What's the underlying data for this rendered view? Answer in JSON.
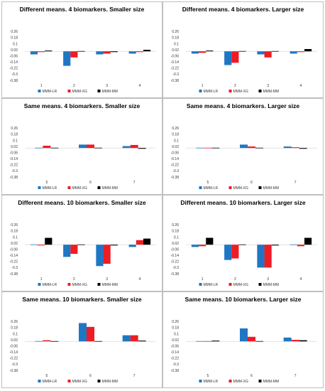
{
  "colors": {
    "MMM-LR": "#1f77c4",
    "MMM-XG": "#ee1c24",
    "MMM-MM": "#000000"
  },
  "chart_data": [
    {
      "type": "bar",
      "title": "Different means. 4 biomarkers. Smaller size",
      "categories": [
        "1",
        "2",
        "3",
        "4"
      ],
      "yticks": [
        "0.26",
        "0.18",
        "0.1",
        "0.02",
        "-0.06",
        "-0.14",
        "-0.22",
        "-0.3",
        "-0.38"
      ],
      "ylim": [
        -0.38,
        0.3
      ],
      "legend": [
        "MMM-LR",
        "MMM-XG",
        "MMM-MM"
      ],
      "series": [
        {
          "name": "MMM-LR",
          "values": [
            -0.04,
            -0.19,
            -0.04,
            -0.03
          ]
        },
        {
          "name": "MMM-XG",
          "values": [
            -0.01,
            -0.08,
            -0.03,
            -0.01
          ]
        },
        {
          "name": "MMM-MM",
          "values": [
            0.01,
            0.0,
            -0.01,
            0.02
          ]
        }
      ]
    },
    {
      "type": "bar",
      "title": "Different means. 4 biomarkers. Larger size",
      "categories": [
        "1",
        "2",
        "3",
        "4"
      ],
      "yticks": [
        "0.26",
        "0.18",
        "0.1",
        "0.02",
        "-0.06",
        "-0.14",
        "-0.22",
        "-0.3",
        "-0.38"
      ],
      "ylim": [
        -0.38,
        0.3
      ],
      "legend": [
        "MMM-LR",
        "MMM-XG",
        "MMM-MM"
      ],
      "series": [
        {
          "name": "MMM-LR",
          "values": [
            -0.03,
            -0.18,
            -0.04,
            -0.03
          ]
        },
        {
          "name": "MMM-XG",
          "values": [
            -0.02,
            -0.15,
            -0.08,
            -0.01
          ]
        },
        {
          "name": "MMM-MM",
          "values": [
            0.01,
            0.0,
            0.0,
            0.03
          ]
        }
      ]
    },
    {
      "type": "bar",
      "title": "Same means. 4 biomarkers. Smaller size",
      "categories": [
        "5",
        "6",
        "7"
      ],
      "yticks": [
        "0.26",
        "0.18",
        "0.1",
        "0.02",
        "-0.06",
        "-0.14",
        "-0.22",
        "-0.3",
        "-0.38"
      ],
      "ylim": [
        -0.38,
        0.3
      ],
      "legend": [
        "MMM-LR",
        "MMM-XG",
        "MMM-MM"
      ],
      "series": [
        {
          "name": "MMM-LR",
          "values": [
            -0.005,
            0.045,
            0.025
          ]
        },
        {
          "name": "MMM-XG",
          "values": [
            0.03,
            0.045,
            0.04
          ]
        },
        {
          "name": "MMM-MM",
          "values": [
            0.0,
            -0.005,
            -0.01
          ]
        }
      ]
    },
    {
      "type": "bar",
      "title": "Same means. 4 biomarkers. Larger size",
      "categories": [
        "5",
        "6",
        "7"
      ],
      "yticks": [
        "0.26",
        "0.18",
        "0.1",
        "0.02",
        "-0.06",
        "-0.14",
        "-0.22",
        "-0.3",
        "-0.38"
      ],
      "ylim": [
        -0.38,
        0.3
      ],
      "legend": [
        "MMM-LR",
        "MMM-XG",
        "MMM-MM"
      ],
      "series": [
        {
          "name": "MMM-LR",
          "values": [
            -0.005,
            0.045,
            0.02
          ]
        },
        {
          "name": "MMM-XG",
          "values": [
            0.0,
            0.02,
            0.01
          ]
        },
        {
          "name": "MMM-MM",
          "values": [
            0.0,
            0.0,
            -0.01
          ]
        }
      ]
    },
    {
      "type": "bar",
      "title": "Different means. 10 biomarkers. Smaller size",
      "categories": [
        "1",
        "2",
        "3",
        "4"
      ],
      "yticks": [
        "0.26",
        "0.18",
        "0.1",
        "0.02",
        "-0.06",
        "-0.14",
        "-0.22",
        "-0.3",
        "-0.38"
      ],
      "ylim": [
        -0.38,
        0.3
      ],
      "legend": [
        "MMM-LR",
        "MMM-XG",
        "MMM-MM"
      ],
      "series": [
        {
          "name": "MMM-LR",
          "values": [
            0.0,
            -0.16,
            -0.28,
            -0.03
          ]
        },
        {
          "name": "MMM-XG",
          "values": [
            -0.01,
            -0.12,
            -0.25,
            0.06
          ]
        },
        {
          "name": "MMM-MM",
          "values": [
            0.09,
            0.0,
            -0.01,
            0.08
          ]
        }
      ]
    },
    {
      "type": "bar",
      "title": "Different means. 10 biomarkers. Larger size",
      "categories": [
        "1",
        "2",
        "3",
        "4"
      ],
      "yticks": [
        "0.26",
        "0.18",
        "0.1",
        "0.02",
        "-0.06",
        "-0.14",
        "-0.22",
        "-0.3",
        "-0.38"
      ],
      "ylim": [
        -0.38,
        0.3
      ],
      "legend": [
        "MMM-LR",
        "MMM-XG",
        "MMM-MM"
      ],
      "series": [
        {
          "name": "MMM-LR",
          "values": [
            -0.03,
            -0.2,
            -0.3,
            0.0
          ]
        },
        {
          "name": "MMM-XG",
          "values": [
            -0.02,
            -0.18,
            -0.3,
            -0.02
          ]
        },
        {
          "name": "MMM-MM",
          "values": [
            0.09,
            0.0,
            -0.01,
            0.09
          ]
        }
      ]
    },
    {
      "type": "bar",
      "title": "Same means. 10 biomarkers. Smaller size",
      "categories": [
        "5",
        "6",
        "7"
      ],
      "yticks": [
        "0.26",
        "0.18",
        "0.1",
        "0.02",
        "-0.06",
        "-0.14",
        "-0.22",
        "-0.3",
        "-0.38"
      ],
      "ylim": [
        -0.38,
        0.3
      ],
      "legend": [
        "MMM-LR",
        "MMM-XG",
        "MMM-MM"
      ],
      "series": [
        {
          "name": "MMM-LR",
          "values": [
            -0.005,
            0.24,
            0.08
          ]
        },
        {
          "name": "MMM-XG",
          "values": [
            0.015,
            0.19,
            0.08
          ]
        },
        {
          "name": "MMM-MM",
          "values": [
            -0.005,
            -0.005,
            0.01
          ]
        }
      ]
    },
    {
      "type": "bar",
      "title": "Same means. 10 biomarkers. Larger size",
      "categories": [
        "5",
        "6",
        "7"
      ],
      "yticks": [
        "0.26",
        "0.18",
        "0.1",
        "0.02",
        "-0.06",
        "-0.14",
        "-0.22",
        "-0.3",
        "-0.38"
      ],
      "ylim": [
        -0.38,
        0.3
      ],
      "legend": [
        "MMM-LR",
        "MMM-XG",
        "MMM-MM"
      ],
      "series": [
        {
          "name": "MMM-LR",
          "values": [
            -0.005,
            0.17,
            0.05
          ]
        },
        {
          "name": "MMM-XG",
          "values": [
            0.0,
            0.06,
            0.02
          ]
        },
        {
          "name": "MMM-MM",
          "values": [
            0.01,
            -0.005,
            0.015
          ]
        }
      ]
    }
  ]
}
